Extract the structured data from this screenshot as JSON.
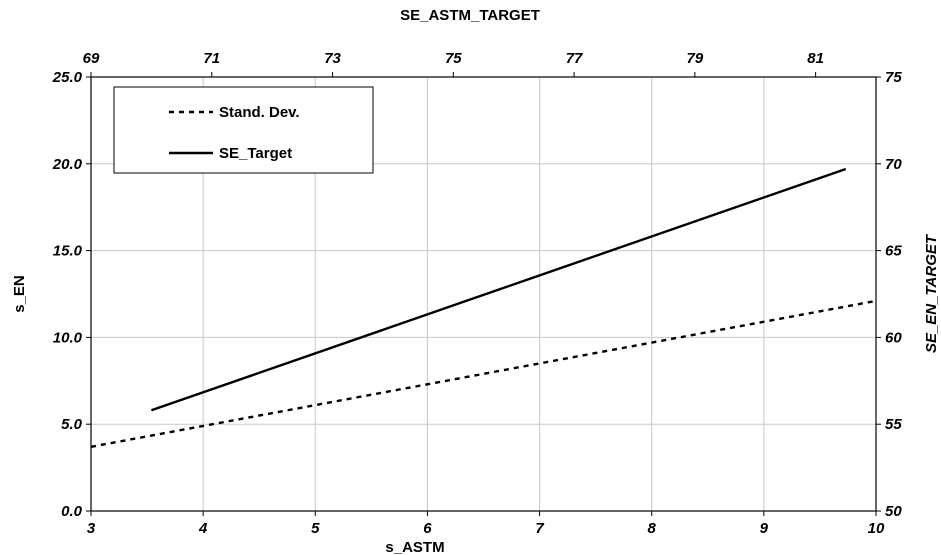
{
  "chart_data": {
    "type": "line",
    "top_axis": {
      "label": "SE_ASTM_TARGET",
      "range": [
        69,
        82
      ],
      "ticks": [
        "69",
        "71",
        "73",
        "75",
        "77",
        "79",
        "81"
      ]
    },
    "bottom_axis": {
      "label": "s_ASTM",
      "range": [
        3,
        10
      ],
      "ticks": [
        "3",
        "4",
        "5",
        "6",
        "7",
        "8",
        "9",
        "10"
      ]
    },
    "left_axis": {
      "label": "s_EN",
      "range": [
        0,
        25
      ],
      "ticks": [
        "0.0",
        "5.0",
        "10.0",
        "15.0",
        "20.0",
        "25.0"
      ]
    },
    "right_axis": {
      "label": "SE_EN_TARGET",
      "range": [
        50,
        75
      ],
      "ticks": [
        "50",
        "55",
        "60",
        "65",
        "70",
        "75"
      ]
    },
    "grid": true,
    "legend_position": "top-left",
    "series": [
      {
        "name": "Stand. Dev.",
        "style": "dashed",
        "color": "#000000",
        "x_axis": "bottom",
        "y_axis": "left",
        "points": [
          [
            3.0,
            3.7
          ],
          [
            10.0,
            12.1
          ]
        ]
      },
      {
        "name": "SE_Target",
        "style": "solid",
        "color": "#000000",
        "x_axis": "top",
        "y_axis": "right",
        "points": [
          [
            70.0,
            55.8
          ],
          [
            81.5,
            69.7
          ]
        ]
      }
    ]
  }
}
